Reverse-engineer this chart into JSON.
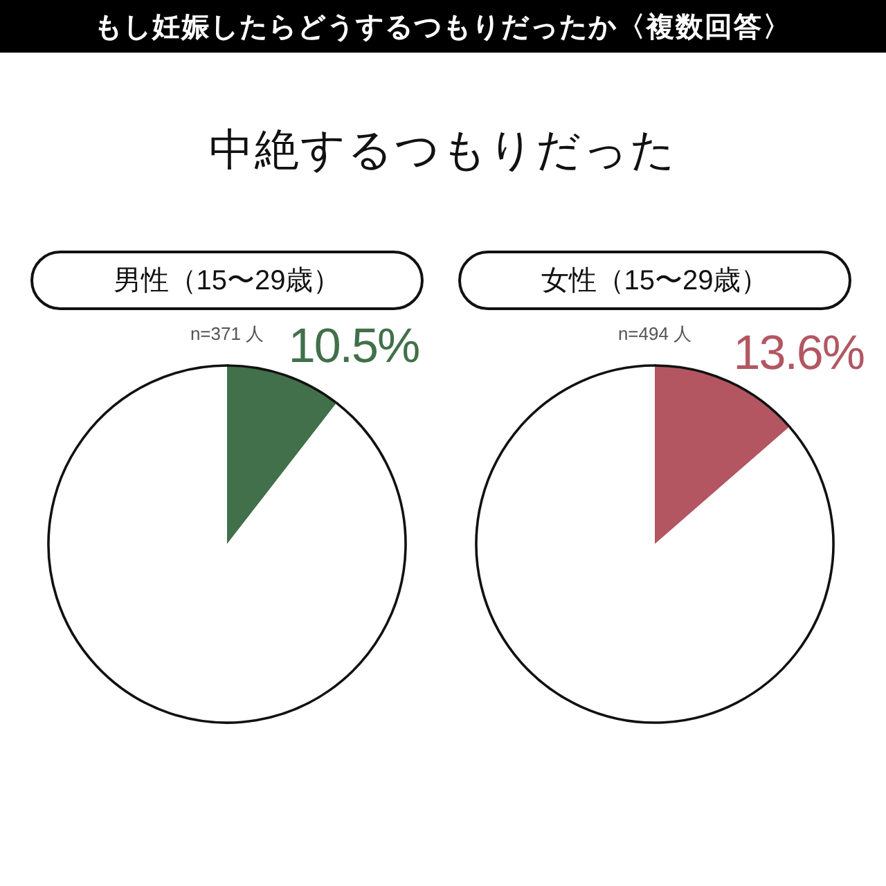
{
  "chart_data": [
    {
      "type": "other",
      "title": "もし妊娠したらどうするつもりだったか〈複数回答〉",
      "subtitle": "中絶するつもりだった"
    },
    {
      "type": "pie",
      "title": "男性（15〜29歳）",
      "subtitle": "n=371 人",
      "categories": [
        null,
        null
      ],
      "values": [
        10.5,
        89.5
      ],
      "colors": [
        "#41704a",
        "#ffffff"
      ],
      "value_labels": [
        "10.5%",
        null
      ]
    },
    {
      "type": "pie",
      "title": "女性（15〜29歳）",
      "subtitle": "n=494 人",
      "categories": [
        null,
        null
      ],
      "values": [
        13.6,
        86.4
      ],
      "colors": [
        "#b35662",
        "#ffffff"
      ],
      "value_labels": [
        "13.6%",
        null
      ]
    }
  ]
}
